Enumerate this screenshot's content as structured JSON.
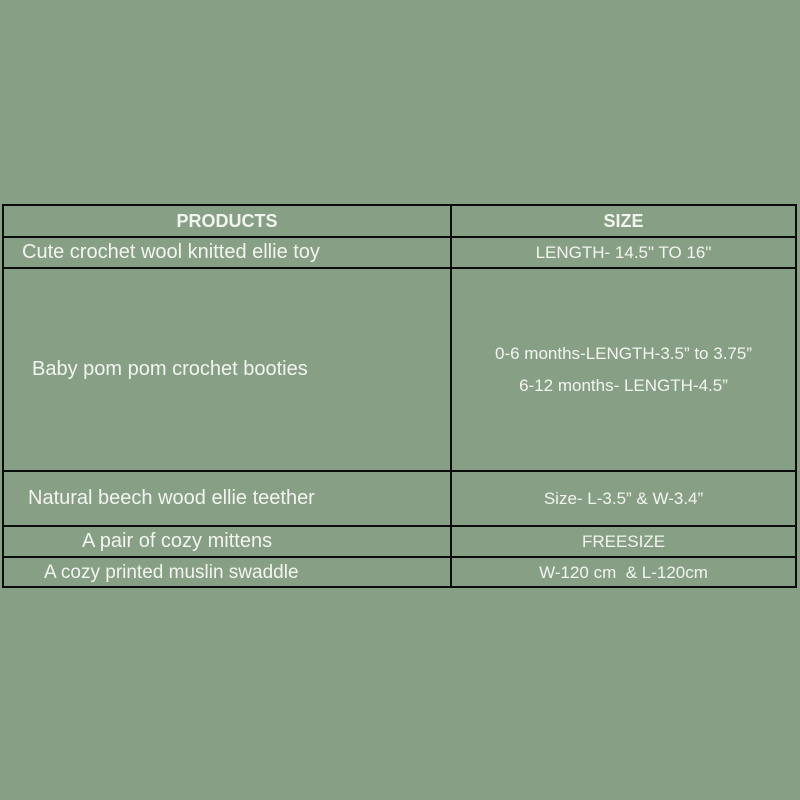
{
  "table": {
    "headers": {
      "products": "PRODUCTS",
      "size": "SIZE"
    },
    "rows": [
      {
        "product": "Cute crochet wool knitted ellie toy",
        "size": [
          "LENGTH- 14.5\" TO 16\""
        ]
      },
      {
        "product": "Baby pom pom crochet booties",
        "size": [
          "0-6 months-LENGTH-3.5” to 3.75”",
          "6-12 months- LENGTH-4.5”"
        ]
      },
      {
        "product": "Natural beech wood ellie teether",
        "size": [
          "Size- L-3.5” & W-3.4”"
        ]
      },
      {
        "product": "A pair of cozy mittens",
        "size": [
          "FREESIZE"
        ]
      },
      {
        "product": "A cozy printed muslin swaddle",
        "size": [
          "W-120 cm  & L-120cm"
        ]
      }
    ]
  },
  "colors": {
    "background": "#87a085",
    "border": "#0c0c0c",
    "text": "#f2f4f0"
  }
}
